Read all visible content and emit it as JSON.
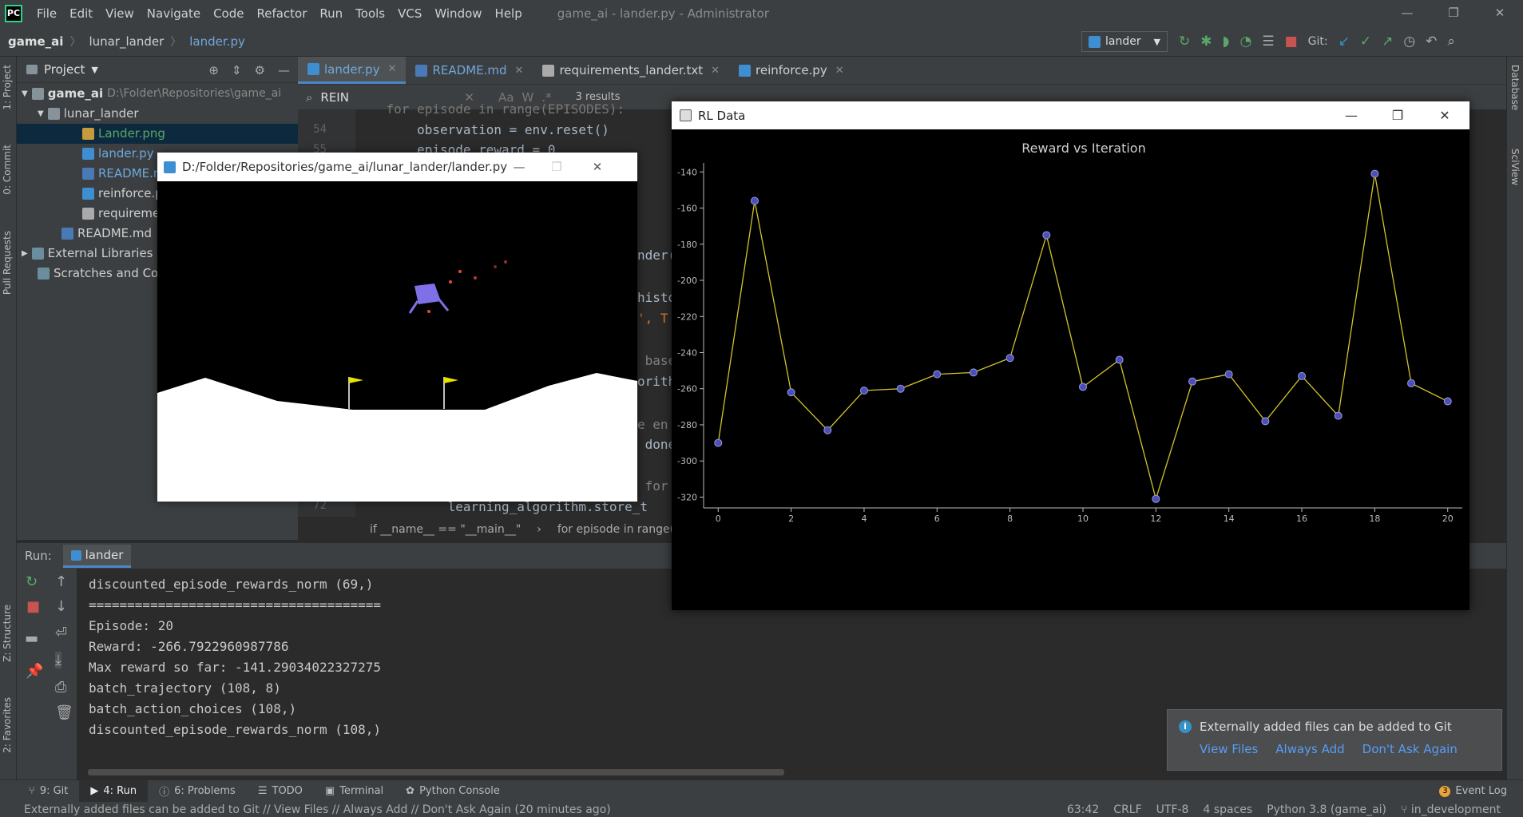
{
  "window": {
    "title": "game_ai - lander.py - Administrator",
    "menu": [
      "File",
      "Edit",
      "View",
      "Navigate",
      "Code",
      "Refactor",
      "Run",
      "Tools",
      "VCS",
      "Window",
      "Help"
    ],
    "logo": "PC",
    "controls": {
      "minimize": "—",
      "restore": "❐",
      "close": "✕"
    }
  },
  "navbar": {
    "crumbs": [
      "game_ai",
      "lunar_lander",
      "lander.py"
    ],
    "run_config": "lander",
    "git_label": "Git:"
  },
  "left_strip": [
    "1: Project",
    "0: Commit",
    "Pull Requests",
    "Z: Structure",
    "2: Favorites"
  ],
  "right_strip": [
    "Database",
    "SciView"
  ],
  "project": {
    "title": "Project",
    "tree": [
      {
        "label": "game_ai",
        "path": "D:\\Folder\\Repositories\\game_ai",
        "icon": "folder"
      },
      {
        "label": "lunar_lander",
        "icon": "folder"
      },
      {
        "label": "Lander.png",
        "icon": "png"
      },
      {
        "label": "lander.py",
        "icon": "py"
      },
      {
        "label": "README.md",
        "icon": "md"
      },
      {
        "label": "reinforce.py",
        "icon": "py"
      },
      {
        "label": "requirements_lander.txt",
        "icon": "txt"
      },
      {
        "label": "README.md",
        "icon": "md"
      },
      {
        "label": "External Libraries",
        "icon": "lib"
      },
      {
        "label": "Scratches and Consoles",
        "icon": "lib"
      }
    ]
  },
  "tabs": [
    {
      "label": "lander.py",
      "active": true
    },
    {
      "label": "README.md"
    },
    {
      "label": "requirements_lander.txt"
    },
    {
      "label": "reinforce.py"
    }
  ],
  "search": {
    "query": "REIN",
    "results": "3 results",
    "opts": [
      "Aa",
      "W",
      ".*"
    ]
  },
  "editor": {
    "line_numbers": [
      "54",
      "55",
      "72"
    ],
    "visible_code": [
      "    for episode in range(EPISODES):",
      "        observation = env.reset()",
      "        episode_reward = 0",
      "nder(",
      "histo",
      "', T",
      " base",
      "orith",
      "e en",
      " done",
      " for",
      "            learning_algorithm.store_t"
    ],
    "breadcrumbs": [
      "if __name__ == \"__main__\"",
      "for episode in range(EPISC"
    ]
  },
  "run": {
    "label": "Run:",
    "config": "lander",
    "console": [
      "discounted_episode_rewards_norm (69,)",
      "======================================",
      "Episode: 20",
      "Reward: -266.7922960987786",
      "Max reward so far: -141.29034022327275",
      "batch_trajectory (108, 8)",
      "batch_action_choices (108,)",
      "discounted_episode_rewards_norm (108,)"
    ]
  },
  "bottom_tabs": [
    "9: Git",
    "4: Run",
    "6: Problems",
    "TODO",
    "Terminal",
    "Python Console"
  ],
  "event_log": {
    "label": "Event Log",
    "count": "3"
  },
  "status": {
    "message": "Externally added files can be added to Git // View Files // Always Add // Don't Ask Again (20 minutes ago)",
    "position": "63:42",
    "line_sep": "CRLF",
    "encoding": "UTF-8",
    "indent": "4 spaces",
    "interpreter": "Python 3.8 (game_ai)",
    "branch": "in_development"
  },
  "notification": {
    "message": "Externally added files can be added to Git",
    "actions": [
      "View Files",
      "Always Add",
      "Don't Ask Again"
    ]
  },
  "lander_window": {
    "title": "D:/Folder/Repositories/game_ai/lunar_lander/lander.py"
  },
  "rl_window": {
    "title": "RL Data"
  },
  "chart_data": {
    "type": "line",
    "title": "Reward vs Iteration",
    "xlabel": "",
    "ylabel": "",
    "x": [
      0,
      1,
      2,
      3,
      4,
      5,
      6,
      7,
      8,
      9,
      10,
      11,
      12,
      13,
      14,
      15,
      16,
      17,
      18,
      19,
      20
    ],
    "values": [
      -290,
      -156,
      -262,
      -283,
      -261,
      -260,
      -252,
      -251,
      -243,
      -175,
      -259,
      -244,
      -321,
      -256,
      -252,
      -278,
      -253,
      -275,
      -141,
      -257,
      -267
    ],
    "xticks": [
      0,
      2,
      4,
      6,
      8,
      10,
      12,
      14,
      16,
      18,
      20
    ],
    "yticks": [
      -140,
      -160,
      -180,
      -200,
      -220,
      -240,
      -260,
      -280,
      -300,
      -320
    ],
    "xlim": [
      -0.4,
      20.4
    ],
    "ylim": [
      -326,
      -135
    ],
    "line_color": "#d4c42a",
    "marker_color": "#4b4fb8",
    "background": "#000000",
    "grid": false
  }
}
